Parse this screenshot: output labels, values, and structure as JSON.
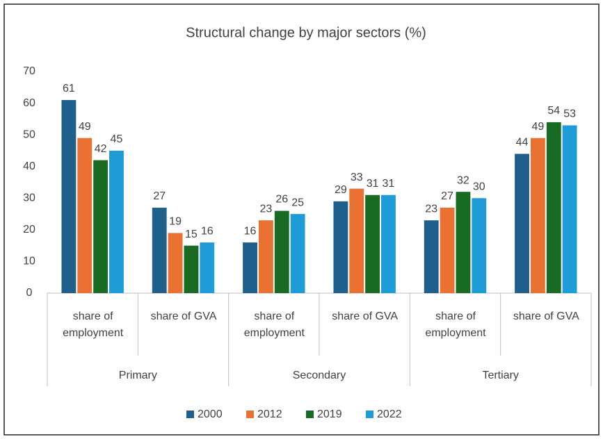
{
  "chart_data": {
    "type": "bar",
    "title": "Structural change by major sectors  (%)",
    "categories": [
      "share of employment",
      "share of GVA",
      "share of employment",
      "share of GVA",
      "share of employment",
      "share of GVA"
    ],
    "groups": [
      "Primary",
      "Secondary",
      "Tertiary"
    ],
    "series": [
      {
        "name": "2000",
        "color": "#1f5f8b",
        "values": [
          61,
          27,
          16,
          29,
          23,
          44
        ]
      },
      {
        "name": "2012",
        "color": "#e97132",
        "values": [
          49,
          19,
          23,
          33,
          27,
          49
        ]
      },
      {
        "name": "2019",
        "color": "#196b24",
        "values": [
          42,
          15,
          26,
          31,
          32,
          54
        ]
      },
      {
        "name": "2022",
        "color": "#1e9cd7",
        "values": [
          45,
          16,
          25,
          31,
          30,
          53
        ]
      }
    ],
    "ylim": [
      0,
      70
    ],
    "yticks": [
      0,
      10,
      20,
      30,
      40,
      50,
      60,
      70
    ],
    "grid": false,
    "legend": "bottom"
  }
}
